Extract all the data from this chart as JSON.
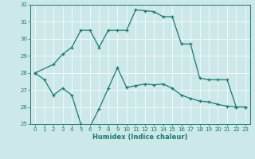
{
  "title": "",
  "xlabel": "Humidex (Indice chaleur)",
  "ylabel": "",
  "background_color": "#cce8e8",
  "line_color": "#1a7a6e",
  "xlim": [
    -0.5,
    23.5
  ],
  "ylim": [
    25,
    32
  ],
  "yticks": [
    25,
    26,
    27,
    28,
    29,
    30,
    31,
    32
  ],
  "xticks": [
    0,
    1,
    2,
    3,
    4,
    5,
    6,
    7,
    8,
    9,
    10,
    11,
    12,
    13,
    14,
    15,
    16,
    17,
    18,
    19,
    20,
    21,
    22,
    23
  ],
  "series1_x": [
    0,
    2,
    3,
    4,
    5,
    6,
    7,
    8,
    9,
    10,
    11,
    12,
    13,
    14,
    15,
    16,
    17,
    18,
    19,
    20,
    21,
    22,
    23
  ],
  "series1_y": [
    28.0,
    28.5,
    29.1,
    29.5,
    30.5,
    30.5,
    29.5,
    30.5,
    30.5,
    30.5,
    31.7,
    31.65,
    31.6,
    31.3,
    31.3,
    29.7,
    29.7,
    27.7,
    27.6,
    27.6,
    27.6,
    26.0,
    26.0
  ],
  "series2_x": [
    0,
    1,
    2,
    3,
    4,
    5,
    6,
    7,
    8,
    9,
    10,
    11,
    12,
    13,
    14,
    15,
    16,
    17,
    18,
    19,
    20,
    21,
    22,
    23
  ],
  "series2_y": [
    28.0,
    27.6,
    26.7,
    27.1,
    26.7,
    25.0,
    24.85,
    25.9,
    27.1,
    28.3,
    27.15,
    27.25,
    27.35,
    27.3,
    27.35,
    27.1,
    26.7,
    26.5,
    26.35,
    26.3,
    26.15,
    26.05,
    26.0,
    26.0
  ]
}
